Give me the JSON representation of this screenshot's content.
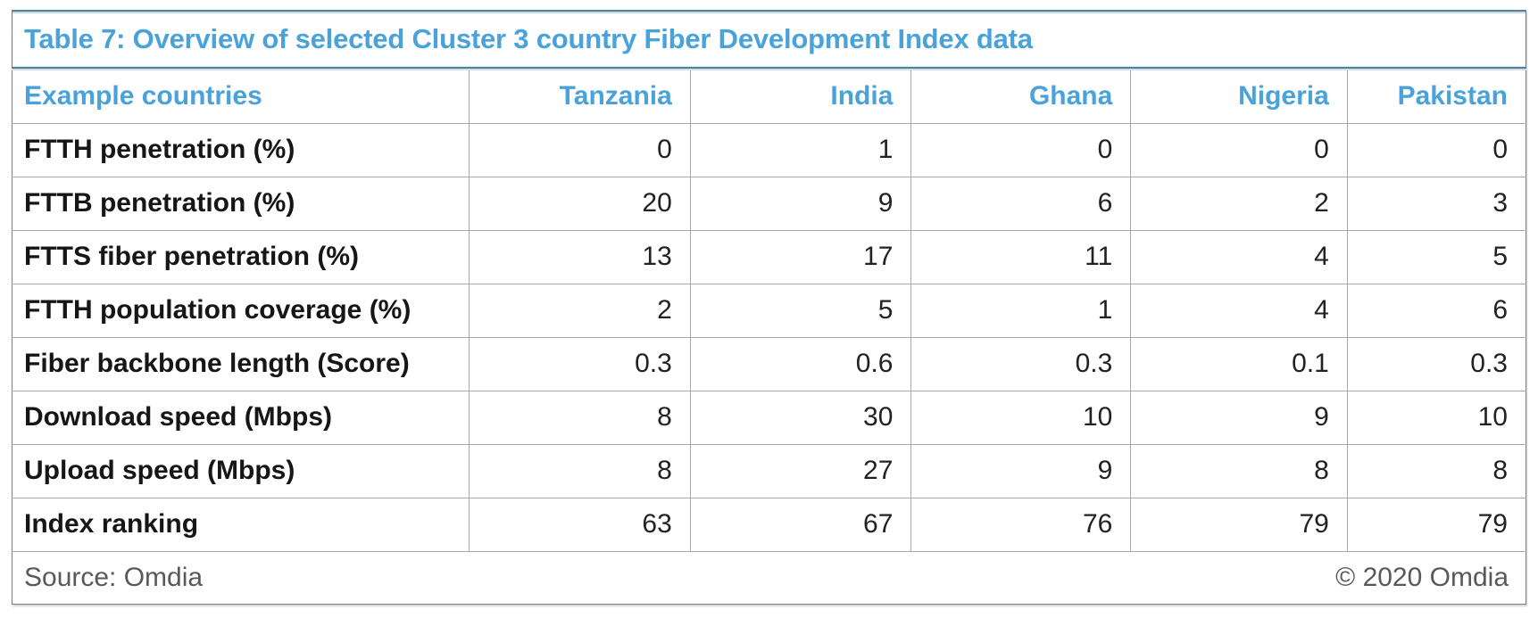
{
  "title": "Table 7: Overview of selected Cluster 3 country Fiber Development Index data",
  "colors": {
    "accent_blue": "#4aa2da",
    "title_rule_blue": "#54809f",
    "title_rule_light": "#cfe0ec",
    "grid_gray": "#a9a9a9",
    "outer_border_gray": "#7f7f7f",
    "body_text": "#222222",
    "footer_gray": "#595959"
  },
  "table": {
    "columns": [
      "Example countries",
      "Tanzania",
      "India",
      "Ghana",
      "Nigeria",
      "Pakistan"
    ],
    "rows": [
      {
        "label": "FTTH penetration (%)",
        "values": [
          "0",
          "1",
          "0",
          "0",
          "0"
        ]
      },
      {
        "label": "FTTB penetration (%)",
        "values": [
          "20",
          "9",
          "6",
          "2",
          "3"
        ]
      },
      {
        "label": "FTTS fiber penetration (%)",
        "values": [
          "13",
          "17",
          "11",
          "4",
          "5"
        ]
      },
      {
        "label": "FTTH population coverage (%)",
        "values": [
          "2",
          "5",
          "1",
          "4",
          "6"
        ]
      },
      {
        "label": "Fiber backbone length (Score)",
        "values": [
          "0.3",
          "0.6",
          "0.3",
          "0.1",
          "0.3"
        ]
      },
      {
        "label": "Download speed (Mbps)",
        "values": [
          "8",
          "30",
          "10",
          "9",
          "10"
        ]
      },
      {
        "label": "Upload speed (Mbps)",
        "values": [
          "8",
          "27",
          "9",
          "8",
          "8"
        ]
      },
      {
        "label": "Index ranking",
        "values": [
          "63",
          "67",
          "76",
          "79",
          "79"
        ]
      }
    ]
  },
  "footer": {
    "source": "Source: Omdia",
    "copyright": "© 2020 Omdia"
  }
}
